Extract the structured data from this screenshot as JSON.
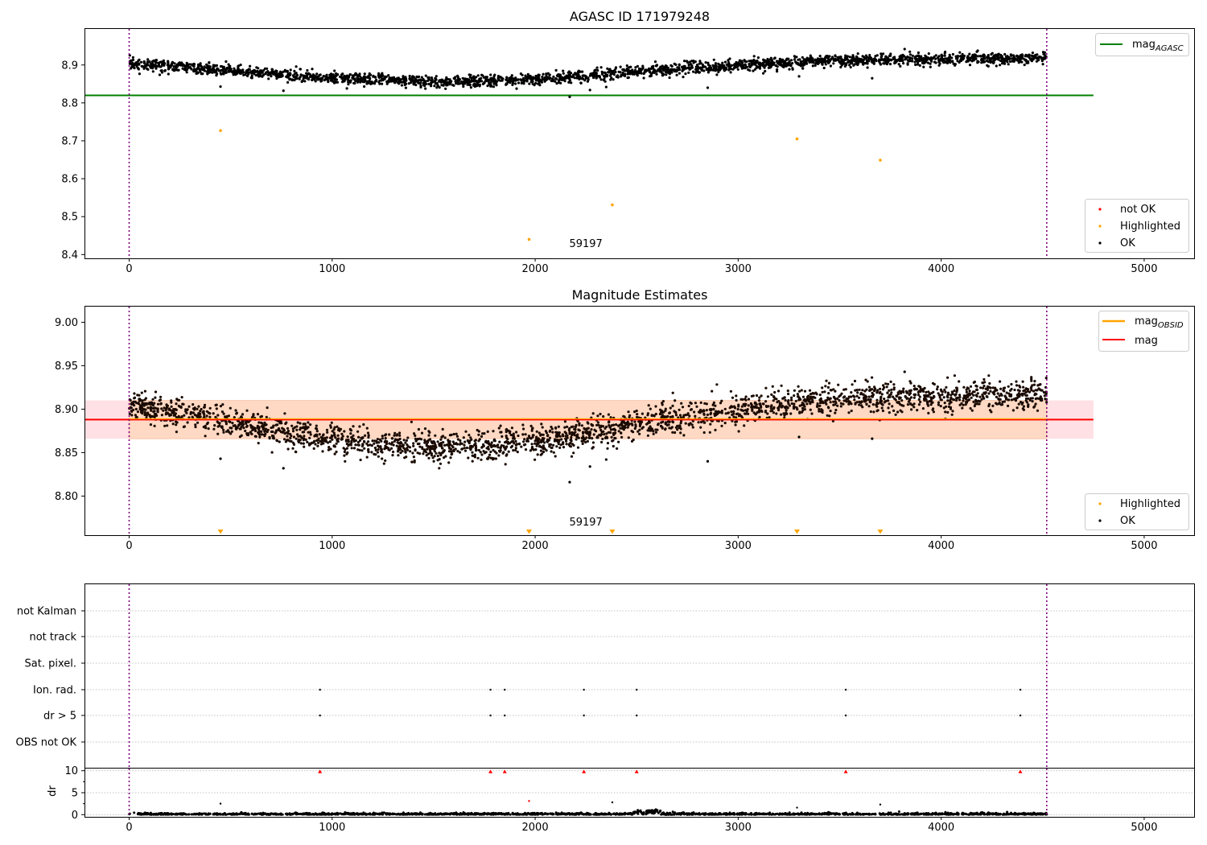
{
  "colors": {
    "ok": "#000000",
    "not_ok": "#ff0000",
    "highlighted": "#ffa500",
    "mag_agasc": "#008000",
    "mag": "#ff0000",
    "mag_obsid": "#ffa500",
    "band_orange": "#ffd9c4",
    "band_pink": "#ffe0e4",
    "vline": "#800080",
    "grid": "#b0b0b0"
  },
  "chart_data": [
    {
      "type": "scatter",
      "title": "AGASC ID 171979248",
      "xlim": [
        -220,
        5250
      ],
      "ylim": [
        8.39,
        8.995
      ],
      "xticks": [
        0,
        1000,
        2000,
        3000,
        4000,
        5000
      ],
      "yticks": [
        8.4,
        8.5,
        8.6,
        8.7,
        8.8,
        8.9
      ],
      "annotation": "59197",
      "annotation_pos": [
        2250,
        8.42
      ],
      "vlines": [
        0,
        4520
      ],
      "mag_agasc": 8.82,
      "mag_agasc_xrange": [
        -220,
        4750
      ],
      "ok_trend": [
        [
          0,
          8.905
        ],
        [
          500,
          8.885
        ],
        [
          1000,
          8.865
        ],
        [
          1500,
          8.855
        ],
        [
          1750,
          8.857
        ],
        [
          2000,
          8.862
        ],
        [
          2500,
          8.882
        ],
        [
          3000,
          8.9
        ],
        [
          3500,
          8.912
        ],
        [
          4000,
          8.915
        ],
        [
          4520,
          8.918
        ]
      ],
      "ok_outliers": [
        [
          450,
          8.843
        ],
        [
          760,
          8.832
        ],
        [
          2170,
          8.816
        ],
        [
          2270,
          8.834
        ],
        [
          2350,
          8.842
        ],
        [
          2850,
          8.84
        ],
        [
          3300,
          8.87
        ],
        [
          3660,
          8.865
        ],
        [
          3820,
          8.942
        ]
      ],
      "highlighted": [
        [
          450,
          8.727
        ],
        [
          1970,
          8.44
        ],
        [
          2380,
          8.531
        ],
        [
          3290,
          8.705
        ],
        [
          3700,
          8.649
        ]
      ],
      "not_ok": [],
      "legend_top": [
        "mag_AGASC"
      ],
      "legend_bottom": [
        "not OK",
        "Highlighted",
        "OK"
      ]
    },
    {
      "type": "scatter",
      "title": "Magnitude Estimates",
      "xlim": [
        -220,
        5250
      ],
      "ylim": [
        8.755,
        9.018
      ],
      "xticks": [
        0,
        1000,
        2000,
        3000,
        4000,
        5000
      ],
      "yticks": [
        8.8,
        8.85,
        8.9,
        8.95,
        9.0
      ],
      "annotation": "59197",
      "annotation_pos": [
        2250,
        8.766
      ],
      "vlines": [
        0,
        4520
      ],
      "mag": 8.888,
      "mag_band": [
        8.866,
        8.91
      ],
      "mag_xrange": [
        -220,
        4750
      ],
      "mag_obsid_band_xrange": [
        0,
        4520
      ],
      "ok_trend": [
        [
          0,
          8.905
        ],
        [
          500,
          8.885
        ],
        [
          1000,
          8.865
        ],
        [
          1500,
          8.855
        ],
        [
          1750,
          8.857
        ],
        [
          2000,
          8.862
        ],
        [
          2500,
          8.882
        ],
        [
          3000,
          8.9
        ],
        [
          3500,
          8.912
        ],
        [
          4000,
          8.915
        ],
        [
          4520,
          8.918
        ]
      ],
      "ok_outliers": [
        [
          450,
          8.843
        ],
        [
          760,
          8.832
        ],
        [
          2170,
          8.816
        ],
        [
          2270,
          8.834
        ],
        [
          2350,
          8.842
        ],
        [
          2850,
          8.84
        ],
        [
          3300,
          8.868
        ],
        [
          3660,
          8.866
        ],
        [
          3820,
          8.943
        ]
      ],
      "highlighted_markers": [
        450,
        1970,
        2380,
        3290,
        3700
      ],
      "legend_top": [
        "mag_OBSID",
        "mag"
      ],
      "legend_bottom": [
        "Highlighted",
        "OK"
      ]
    },
    {
      "type": "scatter",
      "title": "",
      "xlim": [
        -220,
        5250
      ],
      "xticks": [
        0,
        1000,
        2000,
        3000,
        4000,
        5000
      ],
      "vlines": [
        0,
        4520
      ],
      "flag_labels": [
        "not Kalman",
        "not track",
        "Sat. pixel.",
        "Ion. rad.",
        "dr > 5",
        "OBS not OK"
      ],
      "flag_points": {
        "Ion. rad.": [
          940,
          1780,
          1850,
          2240,
          2500,
          3530,
          4390
        ],
        "dr > 5": [
          940,
          1780,
          1850,
          2240,
          2500,
          3530,
          4390
        ]
      }
    },
    {
      "type": "scatter",
      "title": "",
      "ylabel": "dr",
      "xlim": [
        -220,
        5250
      ],
      "ylim": [
        -0.5,
        10.5
      ],
      "xticks": [
        0,
        1000,
        2000,
        3000,
        4000,
        5000
      ],
      "yticks": [
        0,
        5,
        10
      ],
      "vlines": [
        0,
        4520
      ],
      "clipped_not_ok": [
        940,
        1780,
        1850,
        2240,
        2500,
        3530,
        4390
      ],
      "dr_outliers": [
        [
          450,
          2.5
        ],
        [
          2380,
          2.8
        ],
        [
          3290,
          1.6
        ],
        [
          3700,
          2.3
        ],
        [
          2520,
          1.0
        ],
        [
          2560,
          0.9
        ]
      ],
      "dr_not_ok_points": [
        [
          1970,
          3.1
        ]
      ]
    }
  ],
  "legend_labels": {
    "mag_agasc_base": "mag",
    "mag_agasc_sub": "AGASC",
    "mag_obsid_base": "mag",
    "mag_obsid_sub": "OBSID",
    "mag": "mag",
    "not_ok": "not OK",
    "highlighted": "Highlighted",
    "ok": "OK"
  }
}
